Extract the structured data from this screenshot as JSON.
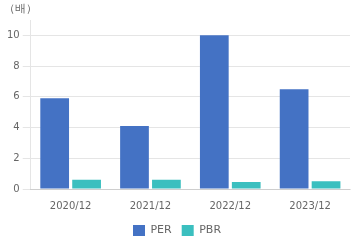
{
  "chart_data": {
    "type": "bar",
    "categories": [
      "2020/12",
      "2021/12",
      "2022/12",
      "2023/12"
    ],
    "series": [
      {
        "name": "PER",
        "color": "#4472C4",
        "values": [
          5.9,
          4.1,
          10.0,
          6.5
        ]
      },
      {
        "name": "PBR",
        "color": "#3BBFBF",
        "values": [
          0.6,
          0.6,
          0.45,
          0.5
        ]
      }
    ],
    "ylabel": "（배）",
    "ylim": [
      0,
      11
    ],
    "yticks": [
      0,
      2,
      4,
      6,
      8,
      10
    ],
    "grid": true,
    "legend": "bottom"
  }
}
